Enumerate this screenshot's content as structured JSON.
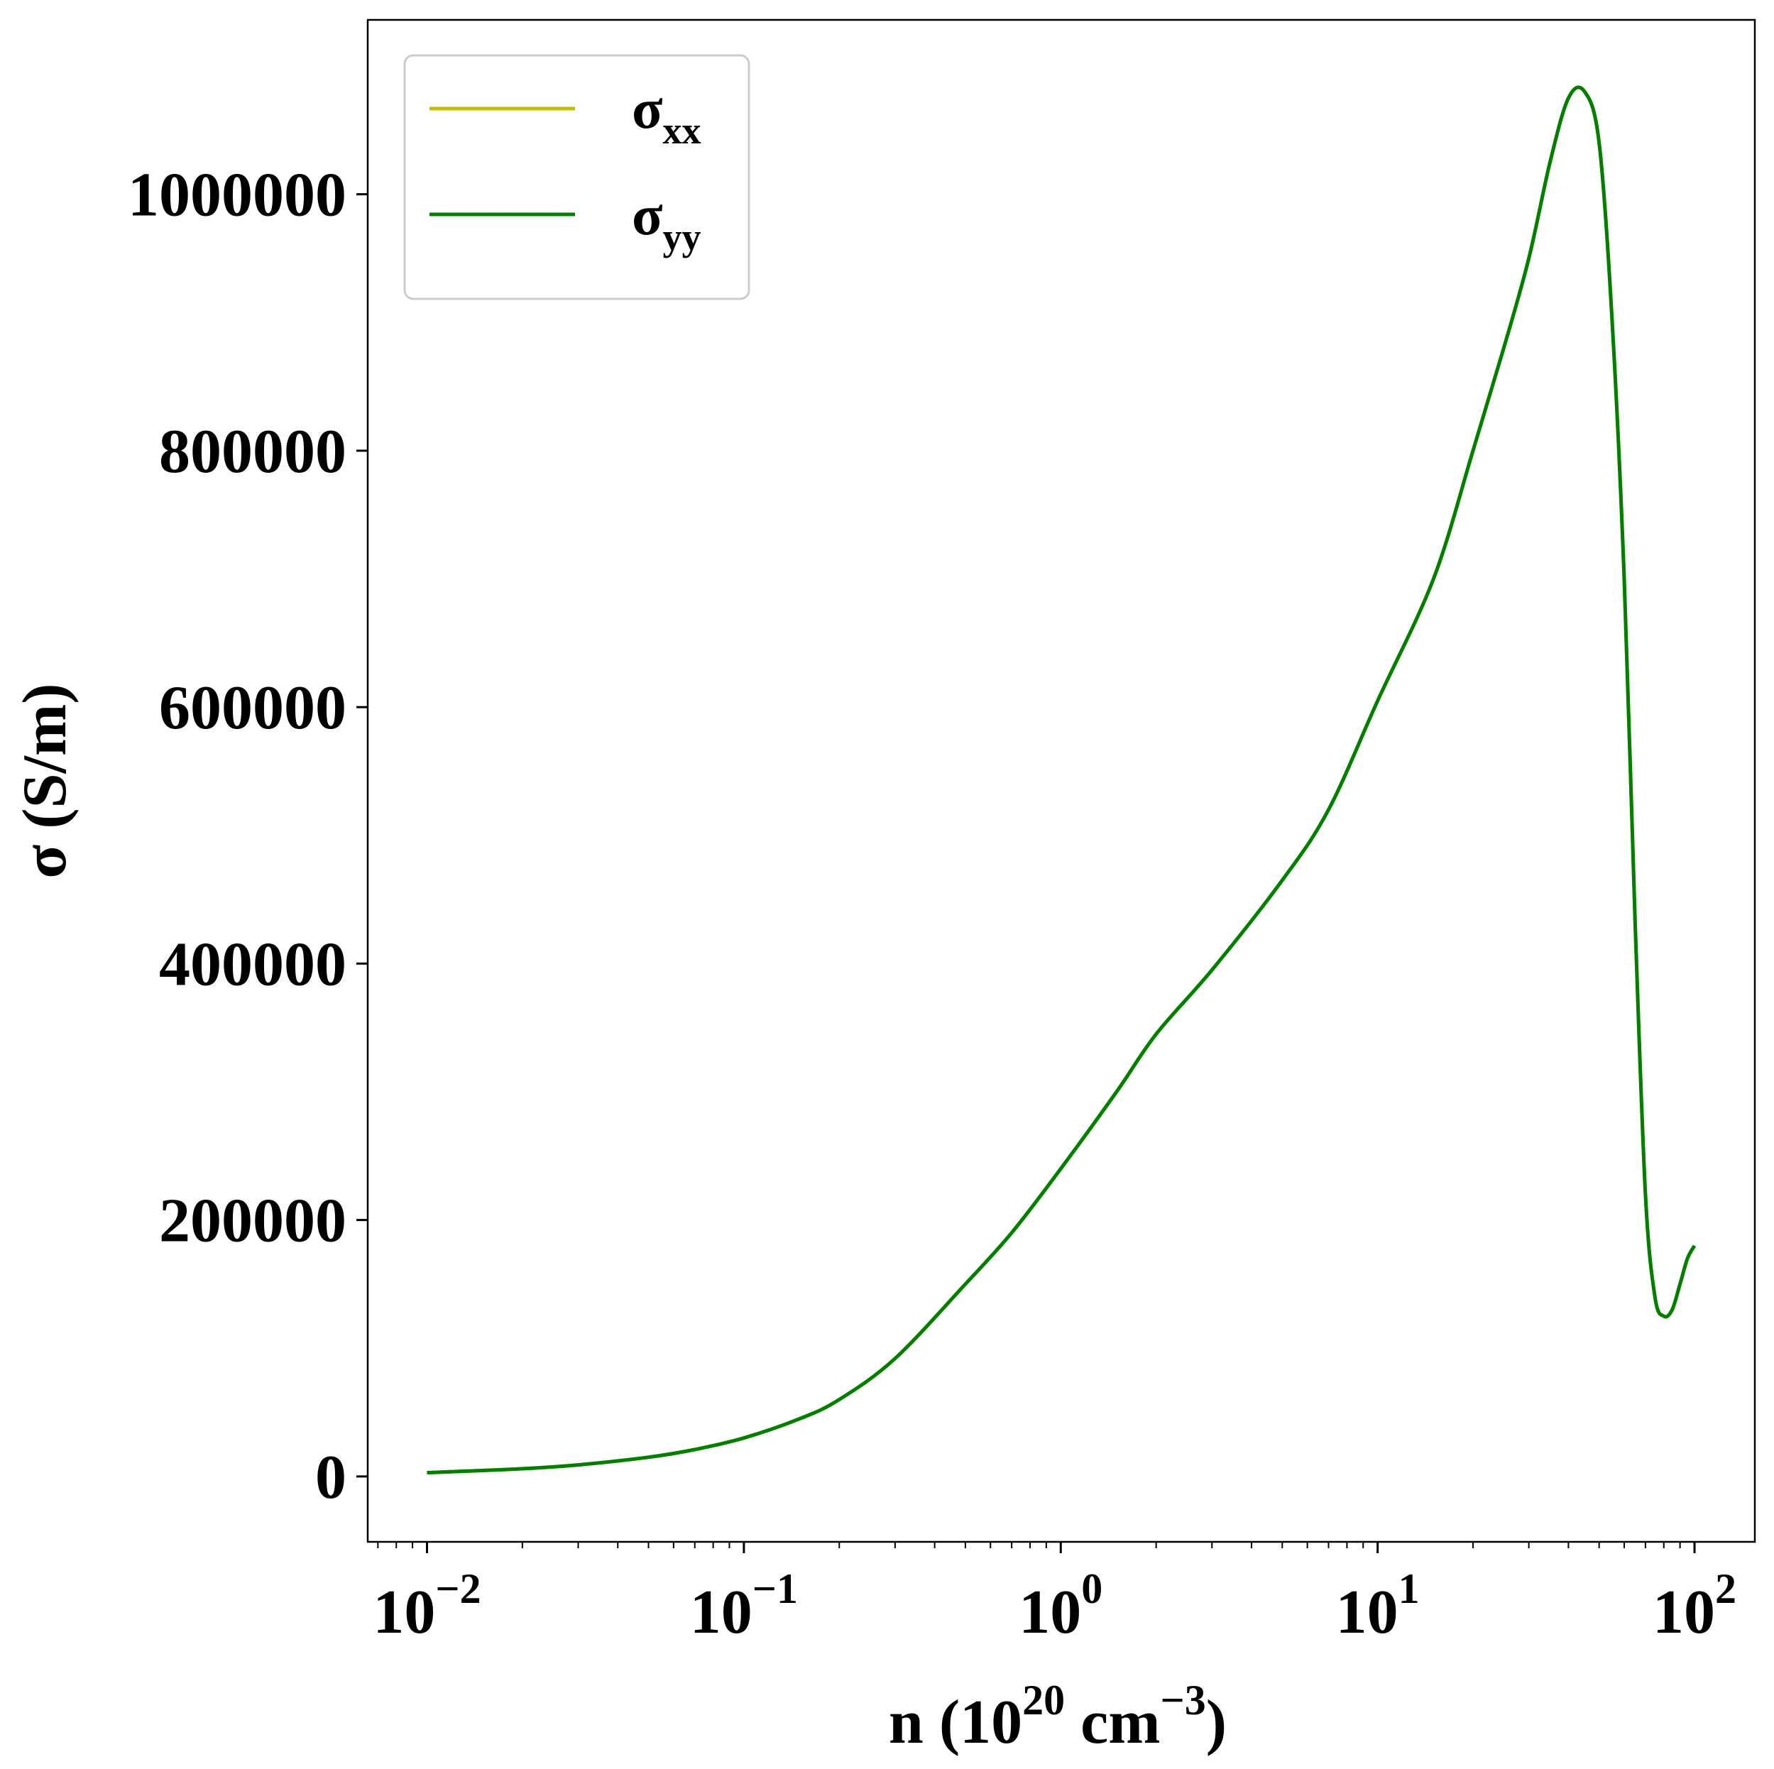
{
  "chart_data": {
    "type": "line",
    "title": "",
    "xlabel": {
      "base": "n (10",
      "sup1": "20",
      "mid": " cm",
      "sup2": "−3",
      "end": ")"
    },
    "ylabel": "σ (S/m)",
    "xscale": "log",
    "xlim": [
      0.0065,
      155
    ],
    "ylim": [
      -51000,
      1136000
    ],
    "x_ticks": [
      {
        "value": 0.01,
        "base": "10",
        "exp": "−2"
      },
      {
        "value": 0.1,
        "base": "10",
        "exp": "−1"
      },
      {
        "value": 1,
        "base": "10",
        "exp": "0"
      },
      {
        "value": 10,
        "base": "10",
        "exp": "1"
      },
      {
        "value": 100,
        "base": "10",
        "exp": "2"
      }
    ],
    "y_ticks": [
      0,
      200000,
      400000,
      600000,
      800000,
      1000000
    ],
    "y_tick_labels": [
      "0",
      "200000",
      "400000",
      "600000",
      "800000",
      "1000000"
    ],
    "legend_position": "upper left",
    "legend": [
      {
        "symbol": "σ",
        "sub": "xx",
        "color": "#bfbf00"
      },
      {
        "symbol": "σ",
        "sub": "yy",
        "color": "#007f00"
      }
    ],
    "series": [
      {
        "name": "σxx",
        "color": "#bfbf00",
        "x": [
          0.01,
          0.02,
          0.03,
          0.05,
          0.07,
          0.1,
          0.15,
          0.2,
          0.3,
          0.5,
          0.7,
          1.0,
          1.5,
          2.0,
          3.0,
          5.0,
          7.0,
          10,
          15,
          20,
          25,
          30,
          35,
          40,
          45,
          50,
          55,
          60,
          65,
          70,
          75,
          80,
          85,
          90,
          95,
          100
        ],
        "y": [
          3000,
          6000,
          9000,
          15000,
          21000,
          30000,
          45000,
          60000,
          92000,
          150000,
          190000,
          240000,
          300000,
          345000,
          395000,
          465000,
          520000,
          605000,
          700000,
          800000,
          880000,
          950000,
          1025000,
          1075000,
          1080000,
          1040000,
          900000,
          700000,
          430000,
          220000,
          140000,
          125000,
          130000,
          150000,
          170000,
          180000
        ]
      },
      {
        "name": "σyy",
        "color": "#007f00",
        "x": [
          0.01,
          0.02,
          0.03,
          0.05,
          0.07,
          0.1,
          0.15,
          0.2,
          0.3,
          0.5,
          0.7,
          1.0,
          1.5,
          2.0,
          3.0,
          5.0,
          7.0,
          10,
          15,
          20,
          25,
          30,
          35,
          40,
          45,
          50,
          55,
          60,
          65,
          70,
          75,
          80,
          85,
          90,
          95,
          100
        ],
        "y": [
          3000,
          6000,
          9000,
          15000,
          21000,
          30000,
          45000,
          60000,
          92000,
          150000,
          190000,
          240000,
          300000,
          345000,
          395000,
          465000,
          520000,
          605000,
          700000,
          800000,
          880000,
          950000,
          1025000,
          1075000,
          1080000,
          1040000,
          900000,
          700000,
          430000,
          220000,
          140000,
          125000,
          130000,
          150000,
          170000,
          180000
        ]
      }
    ]
  }
}
